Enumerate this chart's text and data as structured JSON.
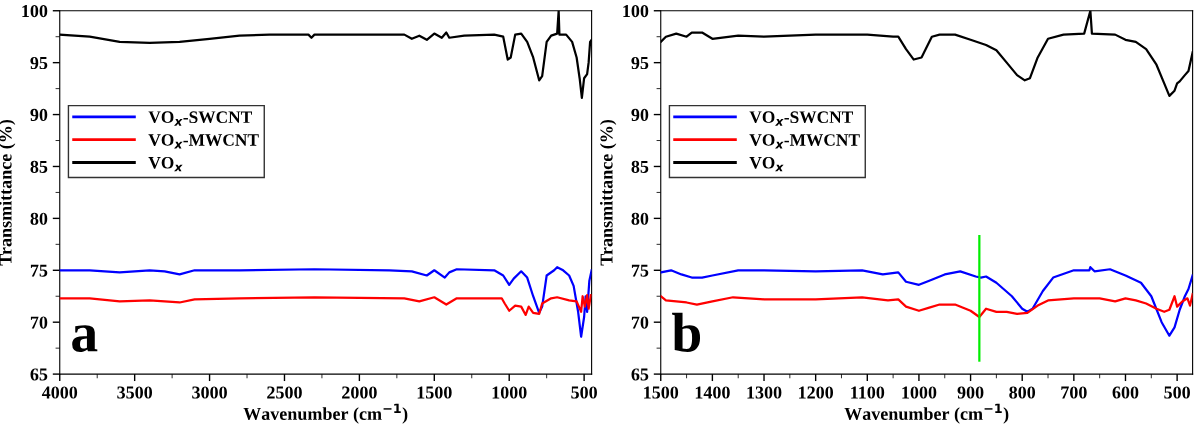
{
  "chart_data": [
    {
      "type": "line",
      "xlabel": "Wavenumber (cm$^{−1}$)",
      "ylabel": "Transmittance (%)",
      "xlim": [
        4000,
        450
      ],
      "xticks": [
        4000,
        3500,
        3000,
        2500,
        2000,
        1500,
        1000,
        500
      ],
      "ylim": [
        65,
        100
      ],
      "yticks": [
        65,
        70,
        75,
        80,
        85,
        90,
        95,
        100
      ],
      "legend": "center left",
      "grid": false,
      "annotations": [
        "a"
      ],
      "series": [
        {
          "name": "VO$_{x}$-SWCNT",
          "color": "#0000ff",
          "x": [
            4000,
            3800,
            3600,
            3500,
            3400,
            3300,
            3200,
            3100,
            2800,
            2300,
            1800,
            1650,
            1550,
            1500,
            1430,
            1400,
            1350,
            1100,
            1040,
            1000,
            970,
            920,
            880,
            840,
            800,
            780,
            750,
            700,
            680,
            640,
            600,
            570,
            540,
            520,
            500,
            490,
            480,
            465,
            450
          ],
          "values": [
            75.0,
            75.0,
            74.8,
            74.9,
            75.0,
            74.9,
            74.6,
            75.0,
            75.0,
            75.1,
            75.0,
            74.9,
            74.5,
            75.0,
            74.3,
            74.8,
            75.1,
            75.0,
            74.5,
            73.6,
            74.2,
            74.9,
            74.3,
            72.5,
            70.9,
            71.5,
            74.5,
            75.0,
            75.3,
            75.0,
            74.5,
            73.5,
            71.0,
            68.6,
            70.5,
            72.5,
            71.0,
            74.0,
            75.0
          ]
        },
        {
          "name": "VO$_{x}$-MWCNT",
          "color": "#ff0000",
          "x": [
            4000,
            3800,
            3600,
            3400,
            3200,
            3100,
            2800,
            2300,
            1700,
            1600,
            1500,
            1420,
            1350,
            1050,
            1030,
            1000,
            960,
            920,
            890,
            870,
            840,
            800,
            780,
            720,
            680,
            600,
            550,
            520,
            510,
            495,
            480,
            470,
            455
          ],
          "values": [
            72.3,
            72.3,
            72.0,
            72.1,
            71.9,
            72.2,
            72.3,
            72.4,
            72.3,
            72.0,
            72.4,
            71.7,
            72.3,
            72.3,
            71.8,
            71.1,
            71.6,
            71.5,
            70.7,
            71.5,
            70.9,
            70.8,
            71.8,
            72.3,
            72.4,
            72.1,
            72.0,
            71.0,
            72.5,
            71.5,
            72.6,
            71.3,
            72.6
          ]
        },
        {
          "name": "VO$_{x}$",
          "color": "#000000",
          "x": [
            4000,
            3800,
            3600,
            3400,
            3200,
            3000,
            2800,
            2600,
            2340,
            2320,
            2300,
            2000,
            1700,
            1650,
            1600,
            1550,
            1500,
            1450,
            1420,
            1400,
            1300,
            1100,
            1040,
            1010,
            990,
            960,
            920,
            880,
            840,
            800,
            780,
            750,
            720,
            680,
            670,
            665,
            620,
            580,
            550,
            530,
            515,
            500,
            480,
            470,
            460,
            450
          ],
          "values": [
            97.7,
            97.5,
            97.0,
            96.9,
            97.0,
            97.3,
            97.6,
            97.7,
            97.7,
            97.4,
            97.7,
            97.7,
            97.7,
            97.3,
            97.6,
            97.2,
            97.8,
            97.4,
            97.9,
            97.4,
            97.6,
            97.7,
            97.5,
            95.3,
            95.5,
            97.7,
            97.8,
            97.0,
            95.5,
            93.3,
            93.7,
            97.0,
            97.6,
            97.8,
            100,
            97.7,
            97.7,
            97.0,
            95.5,
            93.5,
            91.6,
            93.5,
            93.9,
            95.0,
            97.0,
            97.2
          ]
        }
      ]
    },
    {
      "type": "line",
      "xlabel": "Wavenumber (cm$^{−1}$)",
      "ylabel": "Transmittance (%)",
      "xlim": [
        1500,
        470
      ],
      "xticks": [
        1500,
        1400,
        1300,
        1200,
        1100,
        1000,
        900,
        800,
        700,
        600,
        500
      ],
      "ylim": [
        65,
        100
      ],
      "yticks": [
        65,
        70,
        75,
        80,
        85,
        90,
        95,
        100
      ],
      "legend": "center left",
      "grid": false,
      "annotations": [
        "b"
      ],
      "series": [
        {
          "name": "VO$_{x}$-SWCNT",
          "color": "#0000ff",
          "x": [
            1500,
            1480,
            1460,
            1440,
            1420,
            1400,
            1350,
            1300,
            1200,
            1110,
            1070,
            1040,
            1025,
            1000,
            980,
            950,
            920,
            890,
            880,
            870,
            850,
            820,
            800,
            790,
            780,
            760,
            740,
            700,
            670,
            668,
            660,
            630,
            600,
            570,
            550,
            530,
            515,
            505,
            495,
            485,
            478,
            470
          ],
          "values": [
            74.8,
            75.0,
            74.6,
            74.3,
            74.3,
            74.5,
            75.0,
            75.0,
            74.9,
            75.0,
            74.6,
            74.8,
            73.9,
            73.6,
            74.0,
            74.6,
            74.9,
            74.4,
            74.3,
            74.4,
            73.8,
            72.5,
            71.3,
            71.0,
            71.3,
            73.0,
            74.3,
            75.0,
            75.0,
            75.3,
            74.9,
            75.1,
            74.5,
            73.8,
            72.5,
            70.0,
            68.7,
            69.5,
            71.2,
            72.5,
            73.2,
            74.5
          ]
        },
        {
          "name": "VO$_{x}$-MWCNT",
          "color": "#ff0000",
          "x": [
            1500,
            1490,
            1450,
            1430,
            1400,
            1360,
            1300,
            1200,
            1110,
            1060,
            1040,
            1025,
            1000,
            980,
            960,
            930,
            900,
            883,
            870,
            850,
            830,
            810,
            790,
            770,
            750,
            700,
            670,
            650,
            620,
            600,
            580,
            560,
            540,
            525,
            515,
            505,
            500,
            490,
            480,
            475,
            470
          ],
          "values": [
            72.5,
            72.1,
            71.9,
            71.7,
            72.0,
            72.4,
            72.2,
            72.2,
            72.4,
            72.1,
            72.2,
            71.5,
            71.1,
            71.4,
            71.7,
            71.7,
            71.1,
            70.5,
            71.3,
            71.0,
            71.0,
            70.8,
            70.9,
            71.6,
            72.1,
            72.3,
            72.3,
            72.3,
            72.0,
            72.3,
            72.1,
            71.8,
            71.3,
            71.0,
            71.2,
            72.5,
            71.5,
            72.0,
            72.3,
            71.6,
            72.7
          ]
        },
        {
          "name": "VO$_{x}$",
          "color": "#000000",
          "x": [
            1500,
            1490,
            1470,
            1450,
            1440,
            1420,
            1400,
            1350,
            1300,
            1200,
            1100,
            1050,
            1040,
            1025,
            1010,
            995,
            975,
            960,
            930,
            900,
            870,
            850,
            830,
            810,
            795,
            785,
            770,
            750,
            720,
            680,
            668,
            665,
            620,
            600,
            580,
            560,
            540,
            525,
            515,
            505,
            500,
            495,
            485,
            478,
            470
          ],
          "values": [
            97.0,
            97.5,
            97.8,
            97.5,
            97.9,
            97.9,
            97.3,
            97.6,
            97.5,
            97.7,
            97.7,
            97.5,
            97.5,
            96.3,
            95.3,
            95.5,
            97.5,
            97.7,
            97.7,
            97.2,
            96.7,
            96.2,
            95.0,
            93.8,
            93.3,
            93.5,
            95.5,
            97.3,
            97.7,
            97.8,
            100,
            97.8,
            97.7,
            97.2,
            97.0,
            96.3,
            94.8,
            93.0,
            91.8,
            92.3,
            93.0,
            93.2,
            93.8,
            94.2,
            96.0
          ]
        },
        {
          "color": "#00ee00",
          "x": [
            883,
            883
          ],
          "values": [
            66.3,
            78.3
          ]
        }
      ]
    }
  ]
}
